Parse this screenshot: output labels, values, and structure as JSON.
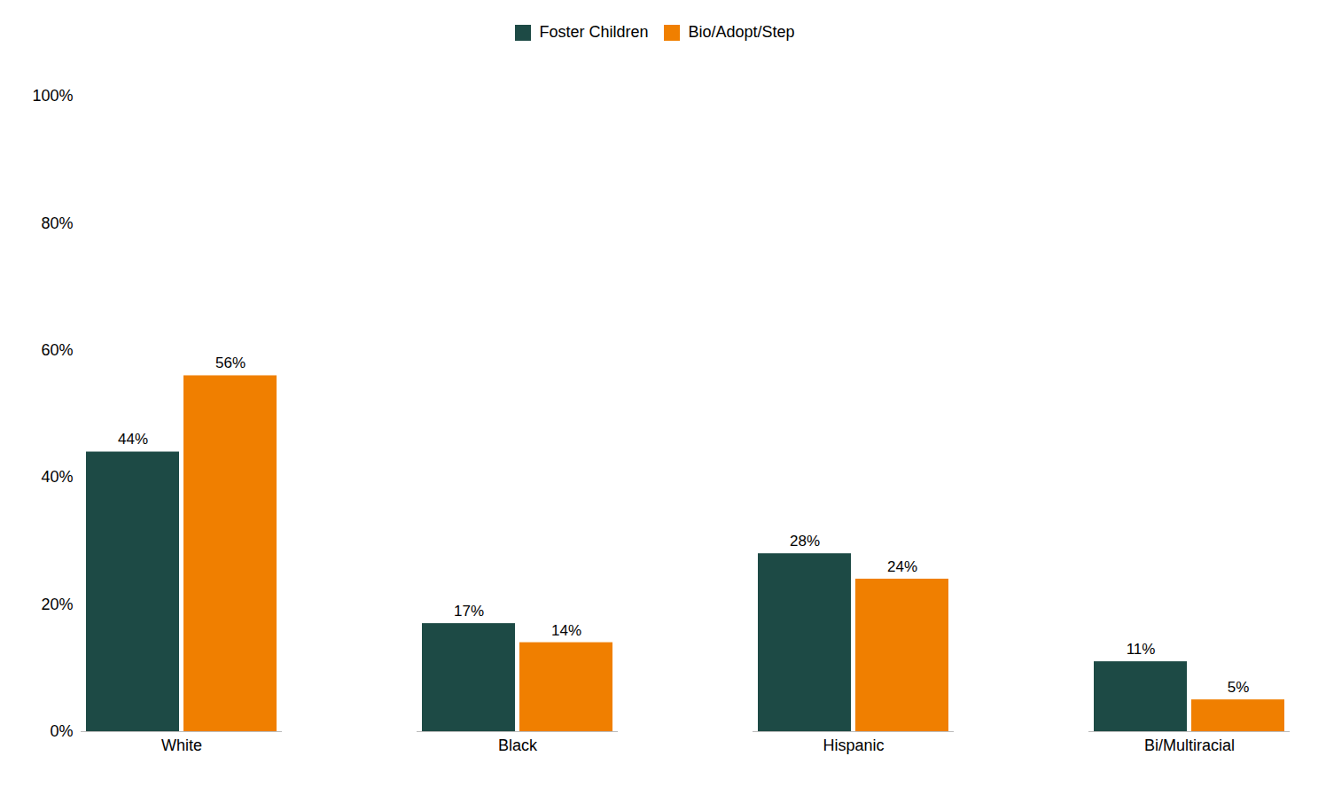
{
  "chart_data": {
    "type": "bar",
    "categories": [
      "White",
      "Black",
      "Hispanic",
      "Bi/Multiracial"
    ],
    "series": [
      {
        "name": "Foster Children",
        "color": "#1d4a45",
        "values": [
          44,
          17,
          28,
          11
        ],
        "value_labels": [
          "44%",
          "17%",
          "28%",
          "11%"
        ]
      },
      {
        "name": "Bio/Adopt/Step",
        "color": "#f07f00",
        "values": [
          56,
          14,
          24,
          5
        ],
        "value_labels": [
          "56%",
          "14%",
          "24%",
          "5%"
        ]
      }
    ],
    "ylim": [
      0,
      100
    ],
    "yticks": [
      {
        "value": 0,
        "label": "0%"
      },
      {
        "value": 20,
        "label": "20%"
      },
      {
        "value": 40,
        "label": "40%"
      },
      {
        "value": 60,
        "label": "60%"
      },
      {
        "value": 80,
        "label": "80%"
      },
      {
        "value": 100,
        "label": "100%"
      }
    ],
    "grid": false,
    "legend": "top",
    "data_labels": true
  }
}
